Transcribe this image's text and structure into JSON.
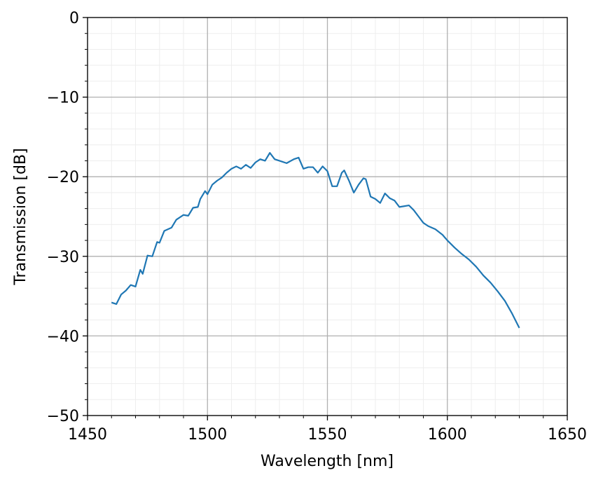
{
  "chart_data": {
    "type": "line",
    "xlabel": "Wavelength [nm]",
    "ylabel": "Transmission [dB]",
    "xlim": [
      1450,
      1650
    ],
    "xticks": [
      1450,
      1500,
      1550,
      1600,
      1650
    ],
    "ylim": [
      -50,
      0
    ],
    "yticks": [
      {
        "value": -50,
        "label": "−50"
      },
      {
        "value": -40,
        "label": "−40"
      },
      {
        "value": -30,
        "label": "−30"
      },
      {
        "value": -20,
        "label": "−20"
      },
      {
        "value": -10,
        "label": "−10"
      },
      0
    ],
    "grid": true,
    "minor_grid": true,
    "x": [
      1460,
      1462,
      1464,
      1466,
      1468,
      1470,
      1472,
      1473,
      1475,
      1477,
      1479,
      1480,
      1482,
      1485,
      1487,
      1490,
      1492,
      1494,
      1496,
      1497,
      1499,
      1500,
      1502,
      1504,
      1506,
      1508,
      1510,
      1512,
      1514,
      1516,
      1518,
      1520,
      1522,
      1524,
      1526,
      1528,
      1530,
      1533,
      1536,
      1538,
      1540,
      1542,
      1544,
      1546,
      1548,
      1550,
      1552,
      1554,
      1556,
      1557,
      1559,
      1561,
      1563,
      1565,
      1566,
      1568,
      1570,
      1572,
      1574,
      1576,
      1578,
      1580,
      1582,
      1584,
      1586,
      1588,
      1590,
      1592,
      1595,
      1598,
      1600,
      1603,
      1606,
      1609,
      1612,
      1615,
      1618,
      1621,
      1624,
      1627,
      1630
    ],
    "series": [
      {
        "color": "#1f77b4",
        "values": [
          -35.8,
          -36.0,
          -34.8,
          -34.3,
          -33.6,
          -33.8,
          -31.7,
          -32.2,
          -29.9,
          -30.0,
          -28.2,
          -28.3,
          -26.8,
          -26.4,
          -25.4,
          -24.8,
          -24.9,
          -23.9,
          -23.8,
          -22.8,
          -21.8,
          -22.2,
          -21.0,
          -20.5,
          -20.1,
          -19.5,
          -19.0,
          -18.7,
          -19.0,
          -18.5,
          -18.9,
          -18.2,
          -17.8,
          -18.0,
          -17.0,
          -17.8,
          -18.0,
          -18.3,
          -17.8,
          -17.6,
          -19.0,
          -18.8,
          -18.8,
          -19.5,
          -18.7,
          -19.3,
          -21.2,
          -21.2,
          -19.5,
          -19.2,
          -20.5,
          -22.0,
          -21.0,
          -20.2,
          -20.3,
          -22.5,
          -22.8,
          -23.3,
          -22.1,
          -22.7,
          -23.0,
          -23.8,
          -23.7,
          -23.6,
          -24.2,
          -25.0,
          -25.8,
          -26.2,
          -26.6,
          -27.3,
          -28.0,
          -28.9,
          -29.7,
          -30.4,
          -31.3,
          -32.4,
          -33.3,
          -34.4,
          -35.6,
          -37.2,
          -39.0
        ]
      }
    ]
  }
}
